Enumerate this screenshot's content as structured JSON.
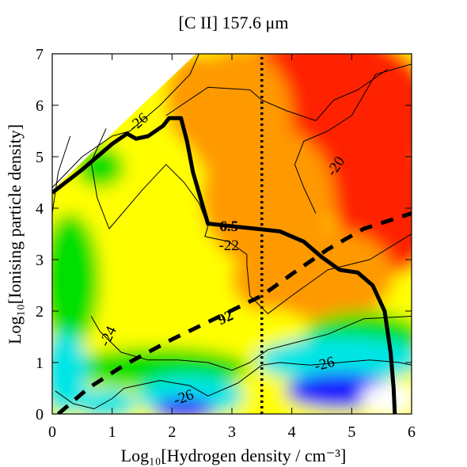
{
  "chart_data": {
    "type": "heatmap",
    "title": "[C II] 157.6 μm",
    "xlabel": "Log₁₀[Hydrogen density / cm⁻³]",
    "ylabel": "Log₁₀[Ionising particle density]",
    "xlim": [
      0,
      6
    ],
    "ylim": [
      0,
      7
    ],
    "xticks": [
      "0",
      "1",
      "2",
      "3",
      "4",
      "5",
      "6"
    ],
    "yticks": [
      "0",
      "1",
      "2",
      "3",
      "4",
      "5",
      "6",
      "7"
    ],
    "colormap": [
      "#ffffff",
      "#1a1aff",
      "#00e5e5",
      "#00e000",
      "#ffff00",
      "#ff9900",
      "#ff2000"
    ],
    "contour_levels": [
      {
        "label": "-20",
        "value": -20
      },
      {
        "label": "-22",
        "value": -22
      },
      {
        "label": "-24",
        "value": -24
      },
      {
        "label": "-26",
        "value": -26
      },
      {
        "label": "-26",
        "value": -26
      },
      {
        "label": "-26",
        "value": -26
      }
    ],
    "contours": [
      {
        "value": -20,
        "points": [
          [
            4.4,
            3.9
          ],
          [
            4.2,
            4.4
          ],
          [
            4.05,
            4.85
          ],
          [
            4.2,
            5.3
          ],
          [
            4.6,
            5.5
          ],
          [
            5.0,
            5.8
          ],
          [
            5.4,
            6.6
          ],
          [
            6,
            6.8
          ]
        ]
      },
      {
        "value": -22,
        "points": [
          [
            0.9,
            5.55
          ],
          [
            0.65,
            4.9
          ],
          [
            0.75,
            4.2
          ],
          [
            0.95,
            3.6
          ],
          [
            1.5,
            4.35
          ],
          [
            1.9,
            4.85
          ],
          [
            2.2,
            4.5
          ],
          [
            2.45,
            4.1
          ],
          [
            2.6,
            3.65
          ],
          [
            2.55,
            3.45
          ],
          [
            2.95,
            3.35
          ],
          [
            3.25,
            3.1
          ],
          [
            3.25,
            2.9
          ],
          [
            3.3,
            2.3
          ],
          [
            3.6,
            1.95
          ],
          [
            4.0,
            2.3
          ],
          [
            4.6,
            2.8
          ],
          [
            5.3,
            3.0
          ],
          [
            6,
            3.5
          ]
        ]
      },
      {
        "value": -22,
        "points": [
          [
            1.9,
            5.8
          ],
          [
            2.6,
            6.35
          ],
          [
            3.3,
            6.3
          ],
          [
            3.5,
            6.1
          ],
          [
            3.9,
            5.9
          ],
          [
            4.4,
            5.7
          ],
          [
            4.7,
            6.1
          ],
          [
            5.1,
            6.3
          ],
          [
            5.6,
            6.7
          ]
        ]
      },
      {
        "value": -24,
        "points": [
          [
            0.65,
            1.9
          ],
          [
            0.8,
            1.6
          ],
          [
            1.15,
            1.2
          ],
          [
            1.6,
            1.05
          ],
          [
            2.1,
            1.05
          ],
          [
            2.6,
            1.0
          ],
          [
            3.0,
            0.85
          ],
          [
            3.3,
            1.0
          ],
          [
            3.6,
            1.25
          ],
          [
            4.1,
            1.4
          ],
          [
            4.6,
            1.55
          ],
          [
            5.2,
            1.85
          ],
          [
            6,
            1.9
          ]
        ]
      },
      {
        "value": -24,
        "points": [
          [
            0.3,
            5.4
          ],
          [
            0.1,
            4.7
          ],
          [
            0.05,
            4.3
          ],
          [
            0,
            3.9
          ]
        ]
      },
      {
        "value": -26,
        "points": [
          [
            0.05,
            0.45
          ],
          [
            0.35,
            0.2
          ],
          [
            0.7,
            0.1
          ],
          [
            1.0,
            0.3
          ],
          [
            1.2,
            0.5
          ],
          [
            1.8,
            0.65
          ],
          [
            2.3,
            0.55
          ],
          [
            2.6,
            0.35
          ],
          [
            3.1,
            0.6
          ],
          [
            3.5,
            0.95
          ],
          [
            3.8,
            1.0
          ],
          [
            4.3,
            0.95
          ],
          [
            4.8,
            1.0
          ],
          [
            5.3,
            1.05
          ],
          [
            5.8,
            1.0
          ],
          [
            6,
            0.95
          ]
        ]
      },
      {
        "value": -26,
        "points": [
          [
            0,
            4.4
          ],
          [
            0.5,
            5.0
          ],
          [
            1.0,
            5.4
          ],
          [
            1.3,
            5.5
          ],
          [
            1.8,
            6.0
          ],
          [
            2.3,
            6.6
          ],
          [
            2.45,
            7
          ]
        ]
      }
    ],
    "overlays": [
      {
        "label": "6.5",
        "style": "solid-thick",
        "points": [
          [
            0,
            4.3
          ],
          [
            0.5,
            4.75
          ],
          [
            1.0,
            5.25
          ],
          [
            1.25,
            5.45
          ],
          [
            1.4,
            5.35
          ],
          [
            1.6,
            5.4
          ],
          [
            1.85,
            5.6
          ],
          [
            1.95,
            5.75
          ],
          [
            2.15,
            5.75
          ],
          [
            2.25,
            5.3
          ],
          [
            2.35,
            4.7
          ],
          [
            2.45,
            4.3
          ],
          [
            2.55,
            3.9
          ],
          [
            2.6,
            3.7
          ],
          [
            3.0,
            3.65
          ],
          [
            3.4,
            3.6
          ],
          [
            3.8,
            3.55
          ],
          [
            4.2,
            3.35
          ],
          [
            4.5,
            3.05
          ],
          [
            4.8,
            2.8
          ],
          [
            5.1,
            2.75
          ],
          [
            5.35,
            2.5
          ],
          [
            5.55,
            2.0
          ],
          [
            5.65,
            1.2
          ],
          [
            5.7,
            0.5
          ],
          [
            5.72,
            0
          ]
        ]
      },
      {
        "label": "92",
        "style": "dashed-thick",
        "points": [
          [
            0.1,
            0
          ],
          [
            0.6,
            0.5
          ],
          [
            1.2,
            0.95
          ],
          [
            2.0,
            1.45
          ],
          [
            2.8,
            1.9
          ],
          [
            3.5,
            2.3
          ],
          [
            4.1,
            2.8
          ],
          [
            4.6,
            3.2
          ],
          [
            5.2,
            3.6
          ],
          [
            6,
            3.9
          ]
        ]
      },
      {
        "label": "",
        "style": "dotted-vertical",
        "points": [
          [
            3.5,
            0
          ],
          [
            3.5,
            7
          ]
        ]
      }
    ],
    "contour_label_positions": [
      {
        "text": "-20",
        "x": 4.75,
        "y": 4.8,
        "rotate": -55
      },
      {
        "text": "-22",
        "x": 2.95,
        "y": 3.25,
        "rotate": 0
      },
      {
        "text": "-24",
        "x": 0.95,
        "y": 1.5,
        "rotate": -65
      },
      {
        "text": "-26",
        "x": 2.2,
        "y": 0.3,
        "rotate": -20
      },
      {
        "text": "-26",
        "x": 4.55,
        "y": 0.95,
        "rotate": -15
      },
      {
        "text": "-26",
        "x": 1.45,
        "y": 5.65,
        "rotate": -40
      }
    ],
    "overlay_label_positions": [
      {
        "text": "6.5",
        "x": 2.95,
        "y": 3.62,
        "rotate": 0
      },
      {
        "text": "92",
        "x": 2.9,
        "y": 1.85,
        "rotate": -25
      }
    ]
  }
}
